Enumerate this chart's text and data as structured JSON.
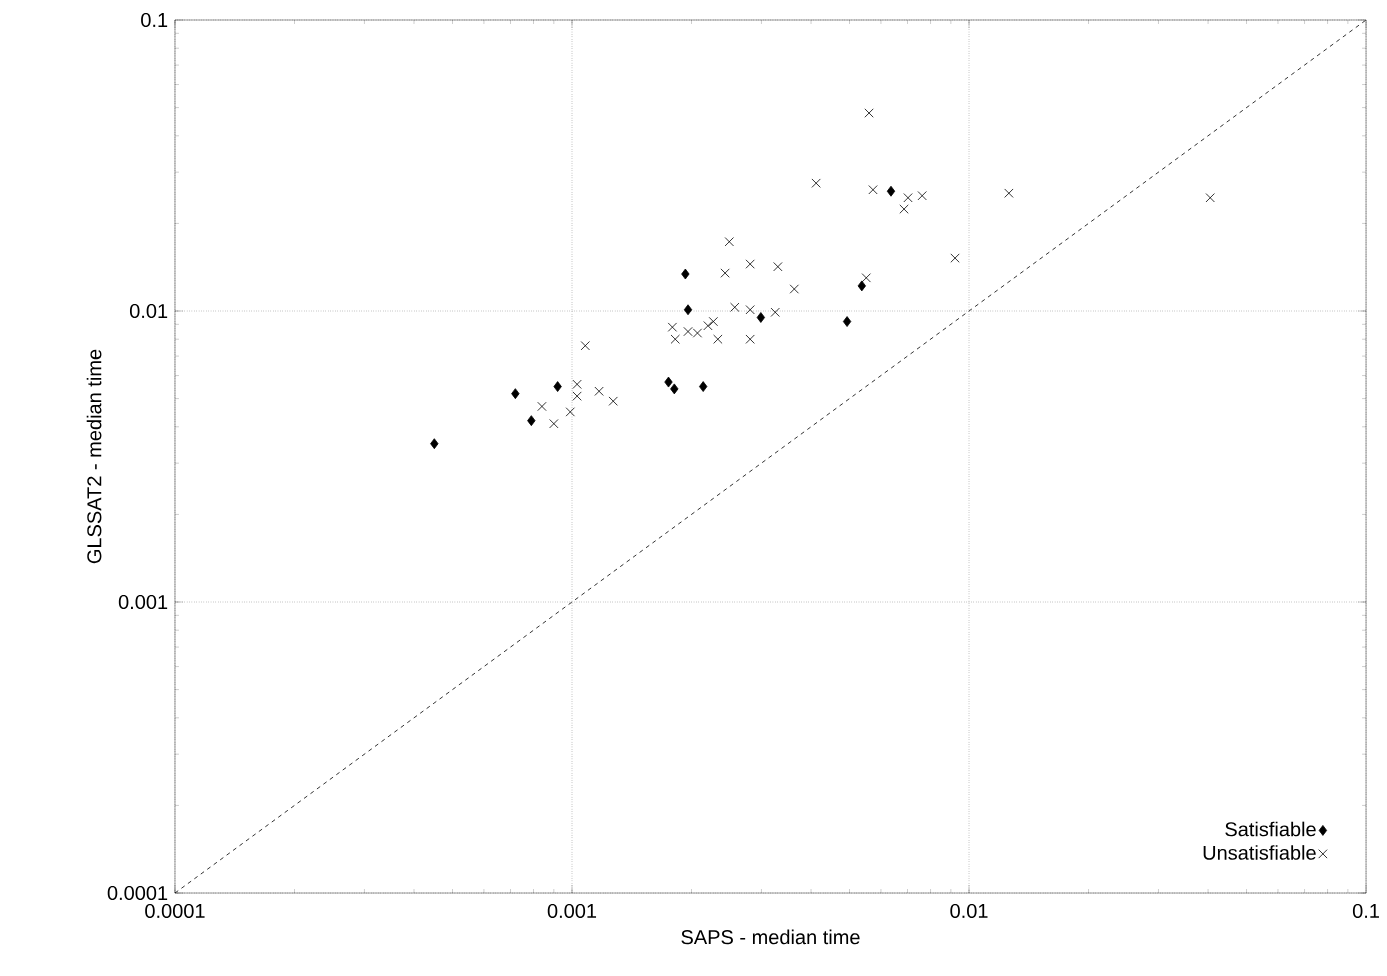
{
  "chart_data": {
    "type": "scatter",
    "xlabel": "SAPS - median time",
    "ylabel": "GLSSAT2 - median time",
    "log": "xy",
    "grid": true,
    "legend": "bottom right",
    "xlim": [
      0.0001,
      0.1
    ],
    "ylim": [
      0.0001,
      0.1
    ],
    "xticks": [
      0.0001,
      0.001,
      0.01,
      0.1
    ],
    "yticks": [
      0.0001,
      0.001,
      0.01,
      0.1
    ],
    "series": [
      {
        "name": "Satisfiable",
        "color": "#000000",
        "marker": "diamond",
        "x": [
          0.00045,
          0.00072,
          0.00079,
          0.00092,
          0.00175,
          0.00181,
          0.00193,
          0.00196,
          0.00214,
          0.00299,
          0.00493,
          0.00537,
          0.00636
        ],
        "values": [
          0.0035,
          0.0052,
          0.0042,
          0.0055,
          0.0057,
          0.0054,
          0.0134,
          0.0101,
          0.0055,
          0.0095,
          0.0092,
          0.0122,
          0.0258
        ]
      },
      {
        "name": "Unsatisfiable",
        "color": "#000000",
        "marker": "cross",
        "x": [
          0.00084,
          0.0009,
          0.00099,
          0.00103,
          0.00103,
          0.00108,
          0.00117,
          0.00127,
          0.00179,
          0.00182,
          0.00196,
          0.00207,
          0.0022,
          0.00227,
          0.00233,
          0.00243,
          0.00249,
          0.00257,
          0.00281,
          0.00281,
          0.00281,
          0.00325,
          0.0033,
          0.00363,
          0.00412,
          0.00551,
          0.0056,
          0.00573,
          0.00686,
          0.00702,
          0.00762,
          0.00922,
          0.0126,
          0.0405
        ],
        "values": [
          0.0047,
          0.0041,
          0.0045,
          0.0056,
          0.0051,
          0.0076,
          0.0053,
          0.0049,
          0.0088,
          0.008,
          0.0085,
          0.0084,
          0.0089,
          0.0092,
          0.008,
          0.0135,
          0.0173,
          0.0103,
          0.0101,
          0.0145,
          0.008,
          0.0099,
          0.0142,
          0.0119,
          0.0275,
          0.013,
          0.0479,
          0.0261,
          0.0224,
          0.0245,
          0.0249,
          0.0152,
          0.0254,
          0.0245
        ]
      },
      {
        "type": "line",
        "color": "#000000",
        "line_style": "dashed",
        "marker": "none",
        "x": [
          0.0001,
          0.1
        ],
        "values": [
          0.0001,
          0.1
        ]
      }
    ]
  }
}
